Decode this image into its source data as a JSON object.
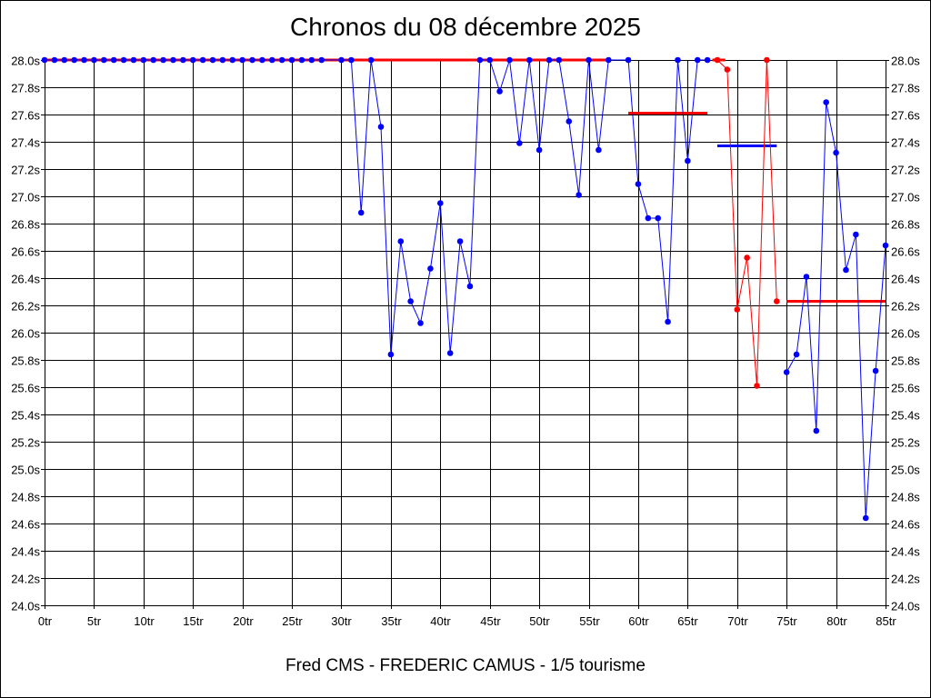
{
  "chart_data": {
    "type": "line",
    "title": "Chronos du 08 décembre 2025",
    "subtitle": "Fred CMS - FREDERIC CAMUS - 1/5 tourisme",
    "x_tick_labels": [
      "0tr",
      "5tr",
      "10tr",
      "15tr",
      "20tr",
      "25tr",
      "30tr",
      "35tr",
      "40tr",
      "45tr",
      "50tr",
      "55tr",
      "60tr",
      "65tr",
      "70tr",
      "75tr",
      "80tr",
      "85tr"
    ],
    "y_tick_labels": [
      "24.0s",
      "24.2s",
      "24.4s",
      "24.6s",
      "24.8s",
      "25.0s",
      "25.2s",
      "25.4s",
      "25.6s",
      "25.8s",
      "26.0s",
      "26.2s",
      "26.4s",
      "26.6s",
      "26.8s",
      "27.0s",
      "27.2s",
      "27.4s",
      "27.6s",
      "27.8s",
      "28.0s"
    ],
    "xlim": [
      0,
      85
    ],
    "ylim": [
      24.0,
      28.0
    ],
    "grid": true,
    "colors": {
      "blue": "#0000ff",
      "red": "#ff0000",
      "grid": "#000000"
    },
    "series": [
      {
        "color": "#0000ff",
        "points": [
          [
            0,
            28.0
          ],
          [
            1,
            28.0
          ],
          [
            2,
            28.0
          ],
          [
            3,
            28.0
          ],
          [
            4,
            28.0
          ],
          [
            5,
            28.0
          ],
          [
            6,
            28.0
          ],
          [
            7,
            28.0
          ],
          [
            8,
            28.0
          ],
          [
            9,
            28.0
          ],
          [
            10,
            28.0
          ],
          [
            11,
            28.0
          ],
          [
            12,
            28.0
          ],
          [
            13,
            28.0
          ],
          [
            14,
            28.0
          ],
          [
            15,
            28.0
          ],
          [
            16,
            28.0
          ],
          [
            17,
            28.0
          ],
          [
            18,
            28.0
          ],
          [
            19,
            28.0
          ],
          [
            20,
            28.0
          ],
          [
            21,
            28.0
          ],
          [
            22,
            28.0
          ],
          [
            23,
            28.0
          ],
          [
            24,
            28.0
          ],
          [
            25,
            28.0
          ],
          [
            26,
            28.0
          ],
          [
            27,
            28.0
          ],
          [
            28,
            28.0
          ],
          [
            30,
            28.0
          ],
          [
            31,
            28.0
          ],
          [
            32,
            26.88
          ],
          [
            33,
            28.0
          ],
          [
            34,
            27.51
          ],
          [
            35,
            25.84
          ],
          [
            36,
            26.67
          ],
          [
            37,
            26.23
          ],
          [
            38,
            26.07
          ],
          [
            39,
            26.47
          ],
          [
            40,
            26.95
          ],
          [
            41,
            25.85
          ],
          [
            42,
            26.67
          ],
          [
            43,
            26.34
          ],
          [
            44,
            28.0
          ],
          [
            45,
            28.0
          ],
          [
            46,
            27.77
          ],
          [
            47,
            28.0
          ],
          [
            48,
            27.39
          ],
          [
            49,
            28.0
          ],
          [
            50,
            27.34
          ],
          [
            51,
            28.0
          ],
          [
            52,
            28.0
          ],
          [
            53,
            27.55
          ],
          [
            54,
            27.01
          ],
          [
            55,
            28.0
          ],
          [
            56,
            27.34
          ],
          [
            57,
            28.0
          ],
          [
            59,
            28.0
          ],
          [
            60,
            27.09
          ],
          [
            61,
            26.84
          ],
          [
            62,
            26.84
          ],
          [
            63,
            26.08
          ],
          [
            64,
            28.0
          ],
          [
            65,
            27.26
          ],
          [
            66,
            28.0
          ],
          [
            67,
            28.0
          ]
        ]
      },
      {
        "color": "#0000ff",
        "points": [
          [
            75,
            25.71
          ],
          [
            76,
            25.84
          ],
          [
            77,
            26.41
          ],
          [
            78,
            25.28
          ],
          [
            79,
            27.69
          ],
          [
            80,
            27.32
          ],
          [
            81,
            26.46
          ],
          [
            82,
            26.72
          ],
          [
            83,
            24.64
          ],
          [
            84,
            25.72
          ],
          [
            85,
            26.64
          ]
        ]
      },
      {
        "color": "#ff0000",
        "points": [
          [
            68,
            28.0
          ],
          [
            69,
            27.93
          ],
          [
            70,
            26.17
          ],
          [
            71,
            26.55
          ],
          [
            72,
            25.61
          ],
          [
            73,
            28.0
          ],
          [
            74,
            26.23
          ]
        ]
      }
    ],
    "reference_lines": [
      {
        "color": "#ff0000",
        "x": [
          0,
          57
        ],
        "y": 28.0
      },
      {
        "color": "#ff0000",
        "x": [
          59,
          67
        ],
        "y": 27.61
      },
      {
        "color": "#0000ff",
        "x": [
          68,
          74
        ],
        "y": 27.37
      },
      {
        "color": "#ff0000",
        "x": [
          75,
          85
        ],
        "y": 26.23
      },
      {
        "color": "#ff0000",
        "x": [
          67.5,
          68.8
        ],
        "y": 28.0
      }
    ]
  }
}
